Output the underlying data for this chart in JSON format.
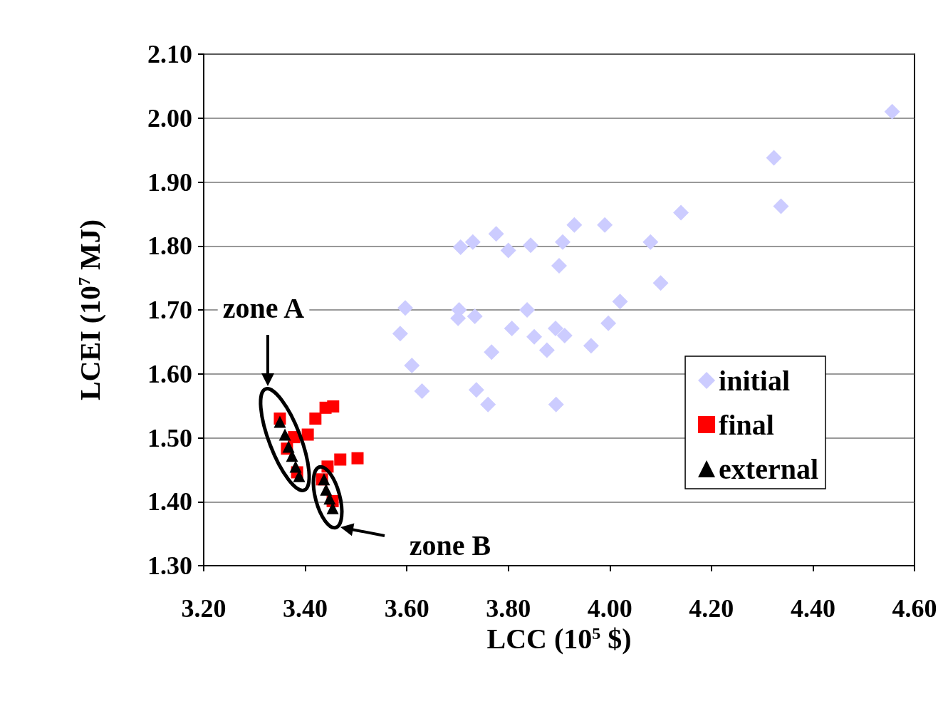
{
  "chart_data": {
    "type": "scatter",
    "xlabel": "LCC (10$^{5}$ $)",
    "ylabel": "LCEI (10$^{7}$ MJ)",
    "xlim": [
      3.2,
      4.6
    ],
    "xticks": [
      {
        "value": 3.2,
        "label": "3.20"
      },
      {
        "value": 3.4,
        "label": "3.40"
      },
      {
        "value": 3.6,
        "label": "3.60"
      },
      {
        "value": 3.8,
        "label": "3.80"
      },
      {
        "value": 4.0,
        "label": "4.00"
      },
      {
        "value": 4.2,
        "label": "4.20"
      },
      {
        "value": 4.4,
        "label": "4.40"
      },
      {
        "value": 4.6,
        "label": "4.60"
      }
    ],
    "ylim": [
      1.3,
      2.1
    ],
    "yticks": [
      {
        "value": 1.3,
        "label": "1.30"
      },
      {
        "value": 1.4,
        "label": "1.40"
      },
      {
        "value": 1.5,
        "label": "1.50"
      },
      {
        "value": 1.6,
        "label": "1.60"
      },
      {
        "value": 1.7,
        "label": "1.70"
      },
      {
        "value": 1.8,
        "label": "1.80"
      },
      {
        "value": 1.9,
        "label": "1.90"
      },
      {
        "value": 2.0,
        "label": "2.00"
      },
      {
        "value": 2.1,
        "label": "2.10"
      }
    ],
    "grid": "y",
    "legend": "right",
    "series": [
      {
        "name": "initial",
        "color": "#ccccff",
        "marker": "diamond",
        "x": [
          4.556,
          4.323,
          4.337,
          4.14,
          3.99,
          4.08,
          4.1,
          4.02,
          3.93,
          3.776,
          3.73,
          3.706,
          3.8,
          3.844,
          3.907,
          3.9,
          3.597,
          3.703,
          3.701,
          3.734,
          3.837,
          3.587,
          3.807,
          3.851,
          3.893,
          3.911,
          3.997,
          3.767,
          3.876,
          3.963,
          3.61,
          3.63,
          3.737,
          3.76,
          3.894
        ],
        "values": [
          2.01,
          1.938,
          1.862,
          1.852,
          1.833,
          1.806,
          1.742,
          1.713,
          1.833,
          1.819,
          1.806,
          1.798,
          1.793,
          1.801,
          1.806,
          1.769,
          1.703,
          1.7,
          1.687,
          1.69,
          1.7,
          1.663,
          1.671,
          1.658,
          1.671,
          1.66,
          1.679,
          1.634,
          1.637,
          1.644,
          1.613,
          1.573,
          1.575,
          1.552,
          1.552
        ]
      },
      {
        "name": "final",
        "color": "#ff0000",
        "marker": "square",
        "x": [
          3.35,
          3.44,
          3.455,
          3.42,
          3.405,
          3.378,
          3.364,
          3.384,
          3.469,
          3.503,
          3.444,
          3.433,
          3.454
        ],
        "values": [
          1.53,
          1.547,
          1.549,
          1.53,
          1.505,
          1.501,
          1.483,
          1.446,
          1.466,
          1.468,
          1.455,
          1.435,
          1.401
        ]
      },
      {
        "name": "external",
        "color": "#000000",
        "marker": "triangle",
        "x": [
          3.35,
          3.36,
          3.367,
          3.374,
          3.381,
          3.388,
          3.437,
          3.441,
          3.448,
          3.454
        ],
        "values": [
          1.525,
          1.505,
          1.486,
          1.472,
          1.455,
          1.44,
          1.435,
          1.419,
          1.405,
          1.39
        ]
      }
    ],
    "annotations": [
      "zone A",
      "zone B"
    ]
  }
}
